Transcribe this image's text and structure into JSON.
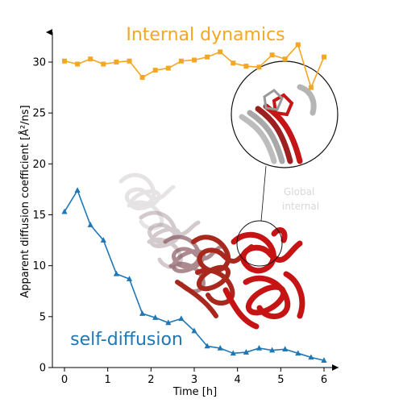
{
  "chart_data": {
    "type": "line",
    "xlabel": "Time [h]",
    "ylabel": "Apparent diffusion coefficient [Å²/ns]",
    "xlim": [
      -0.35,
      6.3
    ],
    "ylim": [
      0,
      33.5
    ],
    "xticks": [
      0,
      1,
      2,
      3,
      4,
      5,
      6
    ],
    "yticks": [
      0,
      5,
      10,
      15,
      20,
      25,
      30
    ],
    "grid": false,
    "series": [
      {
        "name": "Internal dynamics",
        "color": "#f5a623",
        "marker": "square",
        "x": [
          0.0,
          0.3,
          0.6,
          0.9,
          1.2,
          1.5,
          1.8,
          2.1,
          2.4,
          2.7,
          3.0,
          3.3,
          3.6,
          3.9,
          4.2,
          4.5,
          4.8,
          5.1,
          5.4,
          5.7,
          6.0
        ],
        "y": [
          30.1,
          29.8,
          30.3,
          29.8,
          30.0,
          30.1,
          28.5,
          29.2,
          29.4,
          30.1,
          30.2,
          30.5,
          31.0,
          29.9,
          29.6,
          29.5,
          30.7,
          30.3,
          31.7,
          27.5,
          30.5
        ]
      },
      {
        "name": "self-diffusion",
        "color": "#1f77b4",
        "marker": "triangle",
        "x": [
          0.0,
          0.3,
          0.6,
          0.9,
          1.2,
          1.5,
          1.8,
          2.1,
          2.4,
          2.7,
          3.0,
          3.3,
          3.6,
          3.9,
          4.2,
          4.5,
          4.8,
          5.1,
          5.4,
          5.7,
          6.0
        ],
        "y": [
          15.3,
          17.4,
          14.0,
          12.5,
          9.2,
          8.7,
          5.3,
          4.9,
          4.4,
          4.8,
          3.6,
          2.1,
          1.9,
          1.4,
          1.5,
          1.9,
          1.7,
          1.8,
          1.4,
          1.0,
          0.7
        ]
      }
    ]
  },
  "annotations": {
    "internal_label": "Internal dynamics",
    "self_label": "self-diffusion",
    "zoom_label_line1": "Global",
    "zoom_label_line2": "internal"
  }
}
